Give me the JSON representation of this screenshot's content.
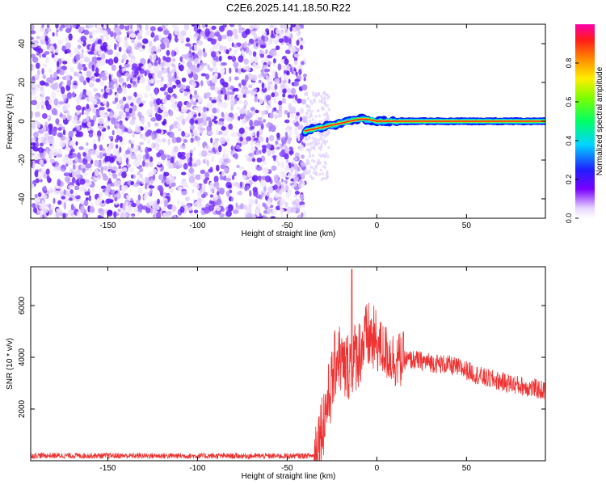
{
  "title": "C2E6.2025.141.18.50.R22",
  "chart_data": [
    {
      "type": "heatmap",
      "xlabel": "Height of straight line (km)",
      "ylabel": "Frequency (Hz)",
      "xlim": [
        -193,
        94
      ],
      "ylim": [
        -50,
        50
      ],
      "xticks": [
        -150,
        -100,
        -50,
        0,
        50
      ],
      "yticks": [
        -40,
        -20,
        0,
        20,
        40
      ],
      "colorbar": {
        "label": "Normalized spectral amplitude",
        "range": [
          0,
          1
        ],
        "ticks": [
          0.0,
          0.2,
          0.4,
          0.6,
          0.8
        ]
      },
      "noise_region_x": [
        -193,
        -40
      ],
      "signal_track": [
        {
          "x": -40,
          "y": -5
        },
        {
          "x": -35,
          "y": -4
        },
        {
          "x": -30,
          "y": -3
        },
        {
          "x": -25,
          "y": -2
        },
        {
          "x": -20,
          "y": -1
        },
        {
          "x": -15,
          "y": 0
        },
        {
          "x": -10,
          "y": 1
        },
        {
          "x": -5,
          "y": 1
        },
        {
          "x": 0,
          "y": 0
        },
        {
          "x": 5,
          "y": 0
        },
        {
          "x": 10,
          "y": 0
        },
        {
          "x": 94,
          "y": 0
        }
      ],
      "grid": false
    },
    {
      "type": "line",
      "xlabel": "Height of straight line (km)",
      "ylabel": "SNR (10 * v/v)",
      "xlim": [
        -193,
        94
      ],
      "ylim": [
        0,
        7500
      ],
      "xticks": [
        -150,
        -100,
        -50,
        0,
        50
      ],
      "yticks": [
        2000,
        4000,
        6000
      ],
      "color": "#ee3333",
      "series": [
        {
          "envelope": [
            {
              "x": -193,
              "y": 200
            },
            {
              "x": -50,
              "y": 180
            },
            {
              "x": -35,
              "y": 200
            },
            {
              "x": -30,
              "y": 1500
            },
            {
              "x": -25,
              "y": 3000
            },
            {
              "x": -22,
              "y": 4200
            },
            {
              "x": -18,
              "y": 3500
            },
            {
              "x": -15,
              "y": 3800
            },
            {
              "x": -10,
              "y": 4200
            },
            {
              "x": -5,
              "y": 4800
            },
            {
              "x": 0,
              "y": 4500
            },
            {
              "x": 10,
              "y": 3900
            },
            {
              "x": 20,
              "y": 3900
            },
            {
              "x": 40,
              "y": 3700
            },
            {
              "x": 50,
              "y": 3500
            },
            {
              "x": 60,
              "y": 3200
            },
            {
              "x": 80,
              "y": 2900
            },
            {
              "x": 94,
              "y": 2700
            }
          ],
          "peak": {
            "x": -14,
            "y": 7400
          }
        }
      ],
      "grid": false
    }
  ]
}
